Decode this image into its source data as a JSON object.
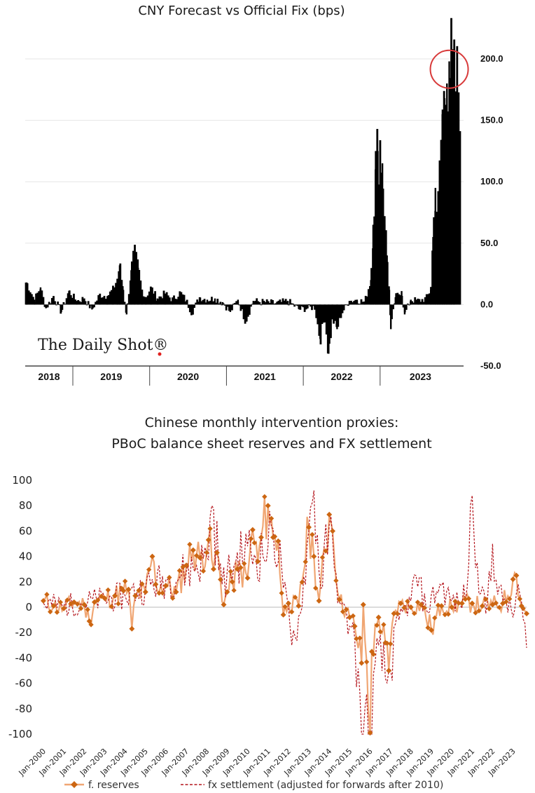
{
  "chart_data": [
    {
      "type": "bar",
      "title": "CNY Forecast vs Official Fix (bps)",
      "watermark": "The Daily Shot®",
      "colors": {
        "bars": "#000000",
        "highlight_circle": "#d83a3a",
        "grid": "#e6e6e6"
      },
      "ylim": [
        -50,
        200
      ],
      "yticks": [
        {
          "value": 200,
          "label": "200.0"
        },
        {
          "value": 150,
          "label": "150.0"
        },
        {
          "value": 100,
          "label": "100.0"
        },
        {
          "value": 50,
          "label": "50.0"
        },
        {
          "value": 0,
          "label": "0.0"
        },
        {
          "value": -50,
          "label": "-50.0"
        }
      ],
      "xlim": [
        2017.98,
        2023.65
      ],
      "years": [
        "2018",
        "2019",
        "2020",
        "2021",
        "2022",
        "2023"
      ],
      "year_bounds": [
        2018.6,
        2019.6,
        2020.6,
        2021.6,
        2022.6
      ],
      "highlight": {
        "x": 2023.5,
        "y": 195
      },
      "series": [
        {
          "x": 2018.0,
          "y": 18
        },
        {
          "x": 2018.1,
          "y": 4
        },
        {
          "x": 2018.18,
          "y": 14
        },
        {
          "x": 2018.25,
          "y": -3
        },
        {
          "x": 2018.35,
          "y": 7
        },
        {
          "x": 2018.45,
          "y": -6
        },
        {
          "x": 2018.55,
          "y": 11
        },
        {
          "x": 2018.65,
          "y": 3
        },
        {
          "x": 2018.75,
          "y": 5
        },
        {
          "x": 2018.85,
          "y": -4
        },
        {
          "x": 2018.95,
          "y": 8
        },
        {
          "x": 2019.05,
          "y": 7
        },
        {
          "x": 2019.12,
          "y": 12
        },
        {
          "x": 2019.18,
          "y": 21
        },
        {
          "x": 2019.21,
          "y": 32
        },
        {
          "x": 2019.25,
          "y": 15
        },
        {
          "x": 2019.3,
          "y": -8
        },
        {
          "x": 2019.36,
          "y": 28
        },
        {
          "x": 2019.4,
          "y": 41
        },
        {
          "x": 2019.45,
          "y": 30
        },
        {
          "x": 2019.5,
          "y": 12
        },
        {
          "x": 2019.55,
          "y": 6
        },
        {
          "x": 2019.62,
          "y": 14
        },
        {
          "x": 2019.7,
          "y": 5
        },
        {
          "x": 2019.8,
          "y": 9
        },
        {
          "x": 2019.9,
          "y": 4
        },
        {
          "x": 2020.0,
          "y": 10
        },
        {
          "x": 2020.08,
          "y": 3
        },
        {
          "x": 2020.15,
          "y": -7
        },
        {
          "x": 2020.25,
          "y": 6
        },
        {
          "x": 2020.35,
          "y": 4
        },
        {
          "x": 2020.45,
          "y": 5
        },
        {
          "x": 2020.55,
          "y": 2
        },
        {
          "x": 2020.65,
          "y": -6
        },
        {
          "x": 2020.75,
          "y": 4
        },
        {
          "x": 2020.85,
          "y": -14
        },
        {
          "x": 2020.95,
          "y": 3
        },
        {
          "x": 2021.1,
          "y": 2
        },
        {
          "x": 2021.25,
          "y": 1
        },
        {
          "x": 2021.4,
          "y": 3
        },
        {
          "x": 2021.55,
          "y": -4
        },
        {
          "x": 2021.65,
          "y": -3
        },
        {
          "x": 2021.75,
          "y": -2
        },
        {
          "x": 2021.82,
          "y": -28
        },
        {
          "x": 2021.88,
          "y": -10
        },
        {
          "x": 2021.93,
          "y": -40
        },
        {
          "x": 2021.98,
          "y": -12
        },
        {
          "x": 2022.04,
          "y": -20
        },
        {
          "x": 2022.1,
          "y": -7
        },
        {
          "x": 2022.2,
          "y": 3
        },
        {
          "x": 2022.3,
          "y": 4
        },
        {
          "x": 2022.4,
          "y": 2
        },
        {
          "x": 2022.48,
          "y": 20
        },
        {
          "x": 2022.51,
          "y": 65
        },
        {
          "x": 2022.54,
          "y": 110
        },
        {
          "x": 2022.57,
          "y": 125
        },
        {
          "x": 2022.6,
          "y": 132
        },
        {
          "x": 2022.63,
          "y": 115
        },
        {
          "x": 2022.66,
          "y": 72
        },
        {
          "x": 2022.69,
          "y": 40
        },
        {
          "x": 2022.72,
          "y": 12
        },
        {
          "x": 2022.74,
          "y": -20
        },
        {
          "x": 2022.8,
          "y": 6
        },
        {
          "x": 2022.88,
          "y": 11
        },
        {
          "x": 2022.92,
          "y": -8
        },
        {
          "x": 2023.0,
          "y": 4
        },
        {
          "x": 2023.1,
          "y": 3
        },
        {
          "x": 2023.2,
          "y": 5
        },
        {
          "x": 2023.26,
          "y": 12
        },
        {
          "x": 2023.29,
          "y": 55
        },
        {
          "x": 2023.32,
          "y": 95
        },
        {
          "x": 2023.35,
          "y": 70
        },
        {
          "x": 2023.38,
          "y": 110
        },
        {
          "x": 2023.41,
          "y": 155
        },
        {
          "x": 2023.44,
          "y": 168
        },
        {
          "x": 2023.47,
          "y": 180
        },
        {
          "x": 2023.5,
          "y": 198
        },
        {
          "x": 2023.53,
          "y": 192
        },
        {
          "x": 2023.56,
          "y": 178
        }
      ]
    },
    {
      "type": "line",
      "title": "Chinese monthly intervention proxies:",
      "subtitle": "PBoC balance sheet reserves and FX settlement",
      "colors": {
        "reserves": "#f0a673",
        "reserves_marker": "#cc6612",
        "fx": "#b4151c",
        "zero": "#c8c8c8"
      },
      "ylim": [
        -100,
        100
      ],
      "yticks": [
        100,
        80,
        60,
        40,
        20,
        0,
        -20,
        -40,
        -60,
        -80,
        -100
      ],
      "x_start": "2000-01",
      "x_end": "2023-09",
      "xtick_labels": [
        "Jan-2000",
        "Jan-2001",
        "Jan-2002",
        "Jan-2003",
        "Jan-2004",
        "Jan-2005",
        "Jan-2006",
        "Jan-2007",
        "Jan-2008",
        "Jan-2009",
        "Jan-2010",
        "Jan-2011",
        "Jan-2012",
        "Jan-2013",
        "Jan-2014",
        "Jan-2015",
        "Jan-2016",
        "Jan-2017",
        "Jan-2018",
        "Jan-2019",
        "Jan-2020",
        "Jan-2021",
        "Jan-2022",
        "Jan-2023"
      ],
      "series": [
        {
          "name": "f. reserves",
          "style": "solid-diamond",
          "points": [
            [
              "2000-01",
              5
            ],
            [
              "2000-07",
              1
            ],
            [
              "2001-01",
              -1
            ],
            [
              "2001-07",
              4
            ],
            [
              "2002-01",
              2
            ],
            [
              "2002-04",
              -11
            ],
            [
              "2002-07",
              4
            ],
            [
              "2003-01",
              7
            ],
            [
              "2003-07",
              9
            ],
            [
              "2003-12",
              13
            ],
            [
              "2004-03",
              14
            ],
            [
              "2004-05",
              -17
            ],
            [
              "2004-07",
              9
            ],
            [
              "2005-01",
              12
            ],
            [
              "2005-05",
              40
            ],
            [
              "2005-07",
              18
            ],
            [
              "2006-01",
              17
            ],
            [
              "2006-07",
              12
            ],
            [
              "2007-01",
              33
            ],
            [
              "2007-05",
              45
            ],
            [
              "2007-09",
              39
            ],
            [
              "2008-02",
              53
            ],
            [
              "2008-05",
              30
            ],
            [
              "2008-07",
              43
            ],
            [
              "2008-11",
              2
            ],
            [
              "2009-01",
              12
            ],
            [
              "2009-04",
              20
            ],
            [
              "2009-07",
              30
            ],
            [
              "2010-01",
              23
            ],
            [
              "2010-04",
              61
            ],
            [
              "2010-07",
              36
            ],
            [
              "2010-09",
              55
            ],
            [
              "2011-01",
              80
            ],
            [
              "2011-04",
              55
            ],
            [
              "2011-07",
              52
            ],
            [
              "2011-10",
              -6
            ],
            [
              "2012-01",
              3
            ],
            [
              "2012-07",
              1
            ],
            [
              "2013-01",
              63
            ],
            [
              "2013-04",
              40
            ],
            [
              "2013-07",
              5
            ],
            [
              "2014-01",
              73
            ],
            [
              "2014-03",
              60
            ],
            [
              "2014-07",
              6
            ],
            [
              "2015-01",
              -8
            ],
            [
              "2015-04",
              -15
            ],
            [
              "2015-08",
              -44
            ],
            [
              "2015-09",
              2
            ],
            [
              "2016-01",
              -99
            ],
            [
              "2016-02",
              -35
            ],
            [
              "2016-06",
              -8
            ],
            [
              "2016-10",
              -28
            ],
            [
              "2016-12",
              -50
            ],
            [
              "2017-03",
              -5
            ],
            [
              "2017-07",
              3
            ],
            [
              "2018-01",
              0
            ],
            [
              "2018-07",
              2
            ],
            [
              "2019-01",
              -18
            ],
            [
              "2019-07",
              1
            ],
            [
              "2020-01",
              0
            ],
            [
              "2020-07",
              3
            ],
            [
              "2021-01",
              3
            ],
            [
              "2021-07",
              1
            ],
            [
              "2022-01",
              2
            ],
            [
              "2022-07",
              3
            ],
            [
              "2023-01",
              22
            ],
            [
              "2023-03",
              25
            ],
            [
              "2023-06",
              1
            ],
            [
              "2023-09",
              -5
            ]
          ]
        },
        {
          "name": "fx settlement (adjusted for forwards after 2010)",
          "style": "dashed",
          "points": [
            [
              "2000-01",
              3
            ],
            [
              "2001-01",
              1
            ],
            [
              "2002-01",
              4
            ],
            [
              "2003-01",
              6
            ],
            [
              "2004-01",
              9
            ],
            [
              "2005-01",
              16
            ],
            [
              "2006-01",
              22
            ],
            [
              "2007-01",
              28
            ],
            [
              "2008-01",
              39
            ],
            [
              "2008-04",
              80
            ],
            [
              "2008-10",
              18
            ],
            [
              "2009-06",
              35
            ],
            [
              "2010-01",
              48
            ],
            [
              "2010-06",
              38
            ],
            [
              "2011-01",
              48
            ],
            [
              "2011-04",
              62
            ],
            [
              "2011-09",
              32
            ],
            [
              "2012-03",
              -30
            ],
            [
              "2012-08",
              -5
            ],
            [
              "2013-01",
              60
            ],
            [
              "2013-04",
              92
            ],
            [
              "2013-08",
              15
            ],
            [
              "2014-01",
              65
            ],
            [
              "2014-04",
              30
            ],
            [
              "2014-08",
              2
            ],
            [
              "2015-01",
              -15
            ],
            [
              "2015-04",
              -25
            ],
            [
              "2015-08",
              -100
            ],
            [
              "2016-01",
              -99
            ],
            [
              "2016-06",
              -30
            ],
            [
              "2016-11",
              -60
            ],
            [
              "2017-06",
              -10
            ],
            [
              "2018-01",
              5
            ],
            [
              "2018-04",
              25
            ],
            [
              "2018-10",
              -2
            ],
            [
              "2019-06",
              18
            ],
            [
              "2020-01",
              5
            ],
            [
              "2020-06",
              2
            ],
            [
              "2020-10",
              15
            ],
            [
              "2021-01",
              88
            ],
            [
              "2021-04",
              35
            ],
            [
              "2021-09",
              -5
            ],
            [
              "2022-01",
              50
            ],
            [
              "2022-04",
              10
            ],
            [
              "2022-09",
              5
            ],
            [
              "2023-01",
              -8
            ],
            [
              "2023-04",
              18
            ],
            [
              "2023-09",
              -32
            ]
          ]
        }
      ]
    }
  ]
}
